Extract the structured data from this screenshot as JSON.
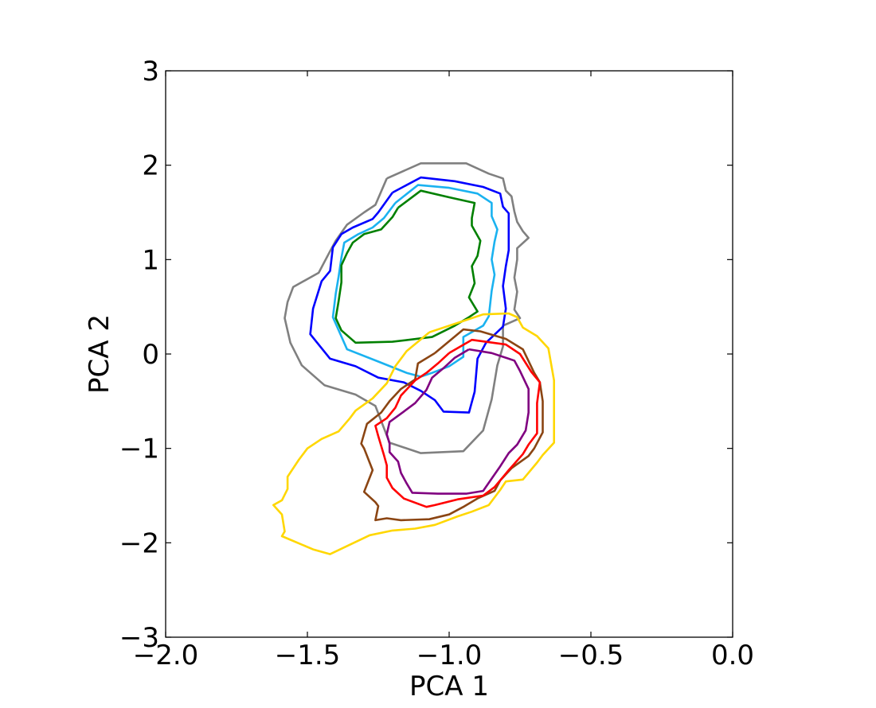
{
  "chart_data": {
    "type": "contour",
    "xlabel": "PCA 1",
    "ylabel": "PCA 2",
    "xlim": [
      -2.0,
      0.0
    ],
    "ylim": [
      -3,
      3
    ],
    "xticks": [
      -2.0,
      -1.5,
      -1.0,
      -0.5,
      0.0
    ],
    "xtick_labels": [
      "−2.0",
      "−1.5",
      "−1.0",
      "−0.5",
      "0.0"
    ],
    "yticks": [
      -3,
      -2,
      -1,
      0,
      1,
      2,
      3
    ],
    "ytick_labels": [
      "−3",
      "−2",
      "−1",
      "0",
      "1",
      "2",
      "3"
    ],
    "grid": false,
    "series": [
      {
        "color": "#808080",
        "points": [
          [
            -1.22,
            1.86
          ],
          [
            -1.1,
            2.02
          ],
          [
            -0.94,
            2.02
          ],
          [
            -0.86,
            1.91
          ],
          [
            -0.81,
            1.86
          ],
          [
            -0.8,
            1.73
          ],
          [
            -0.78,
            1.67
          ],
          [
            -0.77,
            1.51
          ],
          [
            -0.76,
            1.4
          ],
          [
            -0.74,
            1.3
          ],
          [
            -0.72,
            1.23
          ],
          [
            -0.76,
            1.12
          ],
          [
            -0.76,
            1.0
          ],
          [
            -0.77,
            0.81
          ],
          [
            -0.76,
            0.66
          ],
          [
            -0.77,
            0.47
          ],
          [
            -0.75,
            0.38
          ],
          [
            -0.81,
            0.3
          ],
          [
            -0.81,
            0.08
          ],
          [
            -0.83,
            -0.12
          ],
          [
            -0.85,
            -0.48
          ],
          [
            -0.88,
            -0.81
          ],
          [
            -0.95,
            -1.03
          ],
          [
            -1.1,
            -1.05
          ],
          [
            -1.21,
            -0.94
          ],
          [
            -1.26,
            -0.55
          ],
          [
            -1.33,
            -0.43
          ],
          [
            -1.44,
            -0.33
          ],
          [
            -1.52,
            -0.12
          ],
          [
            -1.56,
            0.12
          ],
          [
            -1.58,
            0.38
          ],
          [
            -1.57,
            0.55
          ],
          [
            -1.55,
            0.71
          ],
          [
            -1.46,
            0.86
          ],
          [
            -1.42,
            1.09
          ],
          [
            -1.4,
            1.2
          ],
          [
            -1.36,
            1.37
          ],
          [
            -1.3,
            1.5
          ],
          [
            -1.26,
            1.58
          ],
          [
            -1.22,
            1.86
          ]
        ]
      },
      {
        "color": "#0000ff",
        "points": [
          [
            -1.2,
            1.71
          ],
          [
            -1.1,
            1.87
          ],
          [
            -0.98,
            1.83
          ],
          [
            -0.88,
            1.77
          ],
          [
            -0.82,
            1.7
          ],
          [
            -0.81,
            1.56
          ],
          [
            -0.79,
            1.49
          ],
          [
            -0.79,
            1.27
          ],
          [
            -0.79,
            1.1
          ],
          [
            -0.8,
            0.93
          ],
          [
            -0.81,
            0.72
          ],
          [
            -0.8,
            0.48
          ],
          [
            -0.81,
            0.29
          ],
          [
            -0.87,
            0.12
          ],
          [
            -0.9,
            -0.05
          ],
          [
            -0.91,
            -0.4
          ],
          [
            -0.93,
            -0.62
          ],
          [
            -1.02,
            -0.61
          ],
          [
            -1.05,
            -0.49
          ],
          [
            -1.1,
            -0.39
          ],
          [
            -1.16,
            -0.3
          ],
          [
            -1.25,
            -0.25
          ],
          [
            -1.33,
            -0.13
          ],
          [
            -1.42,
            -0.05
          ],
          [
            -1.49,
            0.21
          ],
          [
            -1.48,
            0.48
          ],
          [
            -1.45,
            0.77
          ],
          [
            -1.42,
            0.88
          ],
          [
            -1.41,
            1.13
          ],
          [
            -1.38,
            1.27
          ],
          [
            -1.34,
            1.34
          ],
          [
            -1.27,
            1.43
          ],
          [
            -1.25,
            1.5
          ],
          [
            -1.2,
            1.71
          ]
        ]
      },
      {
        "color": "#1ab2f0",
        "points": [
          [
            -1.19,
            1.6
          ],
          [
            -1.11,
            1.79
          ],
          [
            -1.0,
            1.76
          ],
          [
            -0.9,
            1.7
          ],
          [
            -0.85,
            1.6
          ],
          [
            -0.85,
            1.46
          ],
          [
            -0.83,
            1.32
          ],
          [
            -0.84,
            1.19
          ],
          [
            -0.85,
            1.0
          ],
          [
            -0.84,
            0.84
          ],
          [
            -0.85,
            0.67
          ],
          [
            -0.86,
            0.4
          ],
          [
            -0.88,
            0.3
          ],
          [
            -0.95,
            0.18
          ],
          [
            -0.95,
            -0.03
          ],
          [
            -1.0,
            -0.13
          ],
          [
            -1.06,
            -0.2
          ],
          [
            -1.1,
            -0.24
          ],
          [
            -1.15,
            -0.2
          ],
          [
            -1.25,
            -0.08
          ],
          [
            -1.36,
            0.05
          ],
          [
            -1.41,
            0.39
          ],
          [
            -1.4,
            0.64
          ],
          [
            -1.39,
            0.82
          ],
          [
            -1.38,
            1.02
          ],
          [
            -1.37,
            1.18
          ],
          [
            -1.32,
            1.27
          ],
          [
            -1.27,
            1.34
          ],
          [
            -1.23,
            1.44
          ],
          [
            -1.19,
            1.6
          ]
        ]
      },
      {
        "color": "#008000",
        "points": [
          [
            -1.18,
            1.55
          ],
          [
            -1.1,
            1.73
          ],
          [
            -1.0,
            1.66
          ],
          [
            -0.91,
            1.6
          ],
          [
            -0.92,
            1.44
          ],
          [
            -0.92,
            1.36
          ],
          [
            -0.89,
            1.2
          ],
          [
            -0.9,
            1.04
          ],
          [
            -0.92,
            0.93
          ],
          [
            -0.91,
            0.75
          ],
          [
            -0.93,
            0.6
          ],
          [
            -0.9,
            0.45
          ],
          [
            -0.93,
            0.39
          ],
          [
            -0.98,
            0.3
          ],
          [
            -1.06,
            0.18
          ],
          [
            -1.2,
            0.13
          ],
          [
            -1.33,
            0.12
          ],
          [
            -1.38,
            0.25
          ],
          [
            -1.4,
            0.38
          ],
          [
            -1.39,
            0.56
          ],
          [
            -1.38,
            0.76
          ],
          [
            -1.38,
            0.94
          ],
          [
            -1.36,
            1.07
          ],
          [
            -1.34,
            1.18
          ],
          [
            -1.3,
            1.27
          ],
          [
            -1.24,
            1.32
          ],
          [
            -1.2,
            1.45
          ],
          [
            -1.18,
            1.55
          ]
        ]
      },
      {
        "color": "#ffd700",
        "points": [
          [
            -1.07,
            0.23
          ],
          [
            -0.95,
            0.35
          ],
          [
            -0.88,
            0.42
          ],
          [
            -0.79,
            0.43
          ],
          [
            -0.76,
            0.39
          ],
          [
            -0.74,
            0.28
          ],
          [
            -0.69,
            0.19
          ],
          [
            -0.65,
            0.06
          ],
          [
            -0.63,
            -0.28
          ],
          [
            -0.63,
            -0.94
          ],
          [
            -0.67,
            -1.07
          ],
          [
            -0.69,
            -1.15
          ],
          [
            -0.74,
            -1.33
          ],
          [
            -0.8,
            -1.35
          ],
          [
            -0.82,
            -1.44
          ],
          [
            -0.86,
            -1.6
          ],
          [
            -0.92,
            -1.67
          ],
          [
            -0.97,
            -1.72
          ],
          [
            -1.05,
            -1.81
          ],
          [
            -1.12,
            -1.85
          ],
          [
            -1.2,
            -1.87
          ],
          [
            -1.28,
            -1.92
          ],
          [
            -1.35,
            -2.02
          ],
          [
            -1.42,
            -2.12
          ],
          [
            -1.48,
            -2.07
          ],
          [
            -1.59,
            -1.93
          ],
          [
            -1.58,
            -1.88
          ],
          [
            -1.59,
            -1.7
          ],
          [
            -1.62,
            -1.6
          ],
          [
            -1.59,
            -1.55
          ],
          [
            -1.57,
            -1.43
          ],
          [
            -1.57,
            -1.3
          ],
          [
            -1.53,
            -1.12
          ],
          [
            -1.5,
            -1.0
          ],
          [
            -1.45,
            -0.9
          ],
          [
            -1.39,
            -0.82
          ],
          [
            -1.35,
            -0.68
          ],
          [
            -1.33,
            -0.6
          ],
          [
            -1.27,
            -0.47
          ],
          [
            -1.22,
            -0.31
          ],
          [
            -1.19,
            -0.13
          ],
          [
            -1.15,
            0.03
          ],
          [
            -1.07,
            0.23
          ]
        ]
      },
      {
        "color": "#8b4513",
        "points": [
          [
            -1.05,
            0.01
          ],
          [
            -0.95,
            0.26
          ],
          [
            -0.89,
            0.24
          ],
          [
            -0.8,
            0.16
          ],
          [
            -0.74,
            0.05
          ],
          [
            -0.7,
            -0.2
          ],
          [
            -0.68,
            -0.3
          ],
          [
            -0.67,
            -0.5
          ],
          [
            -0.67,
            -0.83
          ],
          [
            -0.7,
            -1.0
          ],
          [
            -0.72,
            -1.08
          ],
          [
            -0.78,
            -1.21
          ],
          [
            -0.82,
            -1.34
          ],
          [
            -0.84,
            -1.45
          ],
          [
            -0.9,
            -1.53
          ],
          [
            -0.95,
            -1.62
          ],
          [
            -1.0,
            -1.7
          ],
          [
            -1.07,
            -1.75
          ],
          [
            -1.17,
            -1.76
          ],
          [
            -1.22,
            -1.74
          ],
          [
            -1.26,
            -1.76
          ],
          [
            -1.25,
            -1.61
          ],
          [
            -1.26,
            -1.57
          ],
          [
            -1.3,
            -1.46
          ],
          [
            -1.3,
            -1.46
          ],
          [
            -1.27,
            -1.23
          ],
          [
            -1.3,
            -1.0
          ],
          [
            -1.31,
            -0.95
          ],
          [
            -1.29,
            -0.74
          ],
          [
            -1.24,
            -0.62
          ],
          [
            -1.21,
            -0.5
          ],
          [
            -1.17,
            -0.37
          ],
          [
            -1.12,
            -0.27
          ],
          [
            -1.11,
            -0.1
          ],
          [
            -1.05,
            0.01
          ]
        ]
      },
      {
        "color": "#ff0000",
        "points": [
          [
            -1.0,
            0.01
          ],
          [
            -0.92,
            0.15
          ],
          [
            -0.8,
            0.1
          ],
          [
            -0.75,
            0.0
          ],
          [
            -0.71,
            -0.19
          ],
          [
            -0.68,
            -0.3
          ],
          [
            -0.69,
            -0.52
          ],
          [
            -0.69,
            -0.84
          ],
          [
            -0.72,
            -0.96
          ],
          [
            -0.74,
            -1.06
          ],
          [
            -0.79,
            -1.23
          ],
          [
            -0.84,
            -1.41
          ],
          [
            -0.88,
            -1.5
          ],
          [
            -0.97,
            -1.54
          ],
          [
            -1.05,
            -1.6
          ],
          [
            -1.08,
            -1.62
          ],
          [
            -1.16,
            -1.53
          ],
          [
            -1.2,
            -1.42
          ],
          [
            -1.22,
            -1.31
          ],
          [
            -1.22,
            -1.18
          ],
          [
            -1.23,
            -1.07
          ],
          [
            -1.25,
            -0.87
          ],
          [
            -1.26,
            -0.76
          ],
          [
            -1.22,
            -0.68
          ],
          [
            -1.19,
            -0.57
          ],
          [
            -1.17,
            -0.44
          ],
          [
            -1.12,
            -0.28
          ],
          [
            -1.08,
            -0.2
          ],
          [
            -1.04,
            -0.1
          ],
          [
            -1.0,
            0.01
          ]
        ]
      },
      {
        "color": "#800080",
        "points": [
          [
            -0.93,
            0.05
          ],
          [
            -0.85,
            0.01
          ],
          [
            -0.77,
            -0.07
          ],
          [
            -0.75,
            -0.18
          ],
          [
            -0.72,
            -0.37
          ],
          [
            -0.72,
            -0.62
          ],
          [
            -0.73,
            -0.81
          ],
          [
            -0.76,
            -0.96
          ],
          [
            -0.79,
            -1.05
          ],
          [
            -0.82,
            -1.19
          ],
          [
            -0.85,
            -1.32
          ],
          [
            -0.88,
            -1.45
          ],
          [
            -0.94,
            -1.48
          ],
          [
            -1.04,
            -1.48
          ],
          [
            -1.13,
            -1.47
          ],
          [
            -1.15,
            -1.37
          ],
          [
            -1.17,
            -1.26
          ],
          [
            -1.18,
            -1.14
          ],
          [
            -1.21,
            -1.04
          ],
          [
            -1.21,
            -0.95
          ],
          [
            -1.22,
            -0.85
          ],
          [
            -1.21,
            -0.72
          ],
          [
            -1.16,
            -0.61
          ],
          [
            -1.12,
            -0.52
          ],
          [
            -1.08,
            -0.38
          ],
          [
            -1.06,
            -0.25
          ],
          [
            -1.02,
            -0.15
          ],
          [
            -0.98,
            -0.04
          ],
          [
            -0.93,
            0.05
          ]
        ]
      }
    ]
  }
}
